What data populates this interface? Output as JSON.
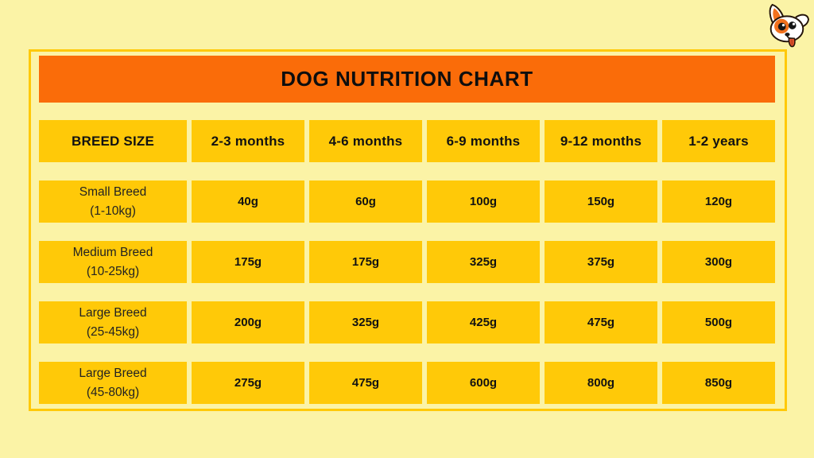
{
  "title": "DOG NUTRITION CHART",
  "logo": {
    "icon": "dog-mascot-icon"
  },
  "colors": {
    "background": "#FBF3A6",
    "frame_border": "#FFC908",
    "title_bg": "#FA6C09",
    "cell_bg": "#FFC908",
    "text": "#121212",
    "mascot_orange": "#F2711D",
    "tongue_red": "#E0532C"
  },
  "table": {
    "headers": [
      "BREED SIZE",
      "2-3 months",
      "4-6 months",
      "6-9 months",
      "9-12 months",
      "1-2 years"
    ],
    "rows": [
      {
        "breed": "Small Breed",
        "weight": "(1-10kg)",
        "values": [
          "40g",
          "60g",
          "100g",
          "150g",
          "120g"
        ]
      },
      {
        "breed": "Medium Breed",
        "weight": "(10-25kg)",
        "values": [
          "175g",
          "175g",
          "325g",
          "375g",
          "300g"
        ]
      },
      {
        "breed": "Large Breed",
        "weight": "(25-45kg)",
        "values": [
          "200g",
          "325g",
          "425g",
          "475g",
          "500g"
        ]
      },
      {
        "breed": "Large Breed",
        "weight": "(45-80kg)",
        "values": [
          "275g",
          "475g",
          "600g",
          "800g",
          "850g"
        ]
      }
    ]
  }
}
